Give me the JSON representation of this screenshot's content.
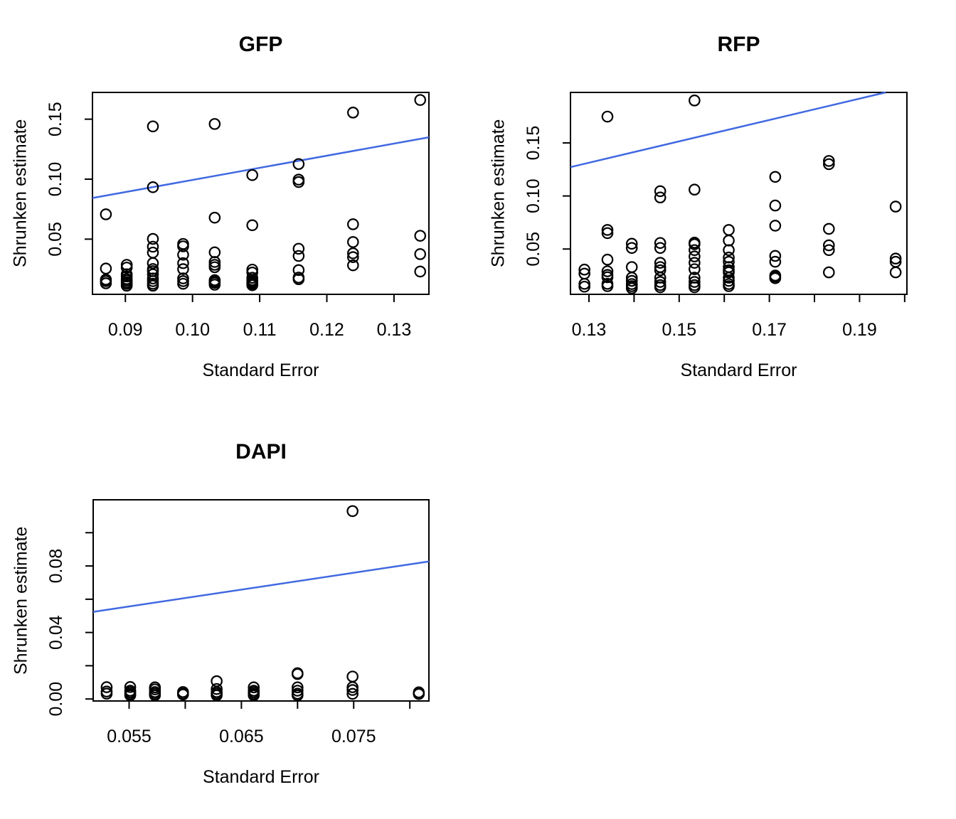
{
  "figure": {
    "background": "#ffffff",
    "point_color": "#000000",
    "line_color": "#4169e1",
    "axis_color": "#000000"
  },
  "chart_data": [
    {
      "id": "gfp",
      "type": "scatter",
      "title": "GFP",
      "xlabel": "Standard Error",
      "ylabel": "Shrunken estimate",
      "xlim": [
        0.0851,
        0.1352
      ],
      "ylim": [
        0.004,
        0.1723
      ],
      "grid": false,
      "legend": "none",
      "x_ticks": [
        0.09,
        0.1,
        0.11,
        0.12,
        0.13
      ],
      "x_tick_labels": [
        "0.09",
        "0.10",
        "0.11",
        "0.12",
        "0.13"
      ],
      "y_ticks": [
        0.05,
        0.1,
        0.15
      ],
      "y_tick_labels": [
        "0.05",
        "0.10",
        "0.15"
      ],
      "line": {
        "x1": 0.0851,
        "y1": 0.0843,
        "x2": 0.1352,
        "y2": 0.1349
      },
      "points": [
        [
          0.0871,
          0.0707
        ],
        [
          0.0871,
          0.0255
        ],
        [
          0.0871,
          0.0163
        ],
        [
          0.0871,
          0.015
        ],
        [
          0.0871,
          0.0132
        ],
        [
          0.0902,
          0.0286
        ],
        [
          0.0902,
          0.0263
        ],
        [
          0.0902,
          0.0207
        ],
        [
          0.0902,
          0.0189
        ],
        [
          0.0902,
          0.0168
        ],
        [
          0.0902,
          0.0155
        ],
        [
          0.0902,
          0.014
        ],
        [
          0.0902,
          0.0128
        ],
        [
          0.0902,
          0.0112
        ],
        [
          0.0941,
          0.144
        ],
        [
          0.0941,
          0.0933
        ],
        [
          0.0941,
          0.0502
        ],
        [
          0.0941,
          0.0437
        ],
        [
          0.0941,
          0.0388
        ],
        [
          0.0941,
          0.03
        ],
        [
          0.0941,
          0.0251
        ],
        [
          0.0941,
          0.0233
        ],
        [
          0.0941,
          0.0207
        ],
        [
          0.0941,
          0.0172
        ],
        [
          0.0941,
          0.015
        ],
        [
          0.0941,
          0.0128
        ],
        [
          0.0941,
          0.0112
        ],
        [
          0.0986,
          0.046
        ],
        [
          0.0986,
          0.044
        ],
        [
          0.0986,
          0.037
        ],
        [
          0.0986,
          0.03
        ],
        [
          0.0986,
          0.025
        ],
        [
          0.0986,
          0.0173
        ],
        [
          0.0986,
          0.015
        ],
        [
          0.0986,
          0.0128
        ],
        [
          0.1033,
          0.146
        ],
        [
          0.1033,
          0.0679
        ],
        [
          0.1033,
          0.039
        ],
        [
          0.1033,
          0.031
        ],
        [
          0.1033,
          0.0286
        ],
        [
          0.1033,
          0.0266
        ],
        [
          0.1033,
          0.0158
        ],
        [
          0.1033,
          0.0146
        ],
        [
          0.1033,
          0.0136
        ],
        [
          0.1033,
          0.012
        ],
        [
          0.1089,
          0.1034
        ],
        [
          0.1089,
          0.0616
        ],
        [
          0.1089,
          0.0246
        ],
        [
          0.1089,
          0.0222
        ],
        [
          0.1089,
          0.0178
        ],
        [
          0.1089,
          0.016
        ],
        [
          0.1089,
          0.0148
        ],
        [
          0.1089,
          0.0138
        ],
        [
          0.1089,
          0.0128
        ],
        [
          0.1089,
          0.0116
        ],
        [
          0.1158,
          0.1126
        ],
        [
          0.1158,
          0.0996
        ],
        [
          0.1158,
          0.0976
        ],
        [
          0.1158,
          0.042
        ],
        [
          0.1158,
          0.036
        ],
        [
          0.1158,
          0.0242
        ],
        [
          0.1158,
          0.018
        ],
        [
          0.1158,
          0.0166
        ],
        [
          0.1239,
          0.1555
        ],
        [
          0.1239,
          0.0624
        ],
        [
          0.1239,
          0.0476
        ],
        [
          0.1239,
          0.0382
        ],
        [
          0.1239,
          0.035
        ],
        [
          0.1239,
          0.0282
        ],
        [
          0.1339,
          0.166
        ],
        [
          0.1339,
          0.0528
        ],
        [
          0.1339,
          0.0375
        ],
        [
          0.1339,
          0.023
        ]
      ]
    },
    {
      "id": "rfp",
      "type": "scatter",
      "title": "RFP",
      "xlabel": "Standard Error",
      "ylabel": "Shrunken estimate",
      "xlim": [
        0.1259,
        0.2005
      ],
      "ylim": [
        0.0073,
        0.1976
      ],
      "grid": false,
      "legend": "none",
      "x_ticks": [
        0.13,
        0.14,
        0.15,
        0.16,
        0.17,
        0.18,
        0.19,
        0.2
      ],
      "x_tick_labels": [
        "0.13",
        "",
        "0.15",
        "",
        "0.17",
        "",
        "0.19",
        ""
      ],
      "y_ticks": [
        0.05,
        0.1,
        0.15
      ],
      "y_tick_labels": [
        "0.05",
        "0.10",
        "0.15"
      ],
      "line": {
        "x1": 0.1259,
        "y1": 0.1272,
        "x2": 0.1958,
        "y2": 0.1976
      },
      "points": [
        [
          0.129,
          0.0306
        ],
        [
          0.129,
          0.0268
        ],
        [
          0.129,
          0.0172
        ],
        [
          0.129,
          0.0145
        ],
        [
          0.1341,
          0.1748
        ],
        [
          0.1341,
          0.068
        ],
        [
          0.1341,
          0.065
        ],
        [
          0.1341,
          0.04
        ],
        [
          0.1341,
          0.029
        ],
        [
          0.1341,
          0.0256
        ],
        [
          0.1341,
          0.0234
        ],
        [
          0.1341,
          0.0172
        ],
        [
          0.1341,
          0.015
        ],
        [
          0.1395,
          0.055
        ],
        [
          0.1395,
          0.051
        ],
        [
          0.1395,
          0.033
        ],
        [
          0.1395,
          0.023
        ],
        [
          0.1395,
          0.02
        ],
        [
          0.1395,
          0.017
        ],
        [
          0.1395,
          0.015
        ],
        [
          0.1395,
          0.013
        ],
        [
          0.1458,
          0.1045
        ],
        [
          0.1458,
          0.0986
        ],
        [
          0.1458,
          0.0557
        ],
        [
          0.1458,
          0.051
        ],
        [
          0.1458,
          0.037
        ],
        [
          0.1458,
          0.033
        ],
        [
          0.1458,
          0.03
        ],
        [
          0.1458,
          0.023
        ],
        [
          0.1458,
          0.019
        ],
        [
          0.1458,
          0.016
        ],
        [
          0.1458,
          0.014
        ],
        [
          0.1534,
          0.19
        ],
        [
          0.1534,
          0.106
        ],
        [
          0.1534,
          0.056
        ],
        [
          0.1534,
          0.0545
        ],
        [
          0.1534,
          0.049
        ],
        [
          0.1534,
          0.043
        ],
        [
          0.1534,
          0.037
        ],
        [
          0.1534,
          0.031
        ],
        [
          0.1534,
          0.023
        ],
        [
          0.1534,
          0.019
        ],
        [
          0.1534,
          0.016
        ],
        [
          0.1534,
          0.014
        ],
        [
          0.161,
          0.068
        ],
        [
          0.161,
          0.058
        ],
        [
          0.161,
          0.049
        ],
        [
          0.161,
          0.042
        ],
        [
          0.161,
          0.038
        ],
        [
          0.161,
          0.033
        ],
        [
          0.161,
          0.03
        ],
        [
          0.161,
          0.028
        ],
        [
          0.161,
          0.023
        ],
        [
          0.161,
          0.02
        ],
        [
          0.161,
          0.017
        ],
        [
          0.161,
          0.015
        ],
        [
          0.1713,
          0.118
        ],
        [
          0.1713,
          0.091
        ],
        [
          0.1713,
          0.072
        ],
        [
          0.1713,
          0.0435
        ],
        [
          0.1713,
          0.038
        ],
        [
          0.1713,
          0.025
        ],
        [
          0.1713,
          0.024
        ],
        [
          0.1713,
          0.0225
        ],
        [
          0.1832,
          0.133
        ],
        [
          0.1832,
          0.13
        ],
        [
          0.1832,
          0.069
        ],
        [
          0.1832,
          0.0535
        ],
        [
          0.1832,
          0.049
        ],
        [
          0.1832,
          0.028
        ],
        [
          0.198,
          0.09
        ],
        [
          0.198,
          0.041
        ],
        [
          0.198,
          0.038
        ],
        [
          0.198,
          0.028
        ]
      ]
    },
    {
      "id": "dapi",
      "type": "scatter",
      "title": "DAPI",
      "xlabel": "Standard Error",
      "ylabel": "Shrunken estimate",
      "xlim": [
        0.0518,
        0.0817
      ],
      "ylim": [
        -0.0012,
        0.1198
      ],
      "grid": false,
      "legend": "none",
      "x_ticks": [
        0.055,
        0.06,
        0.065,
        0.07,
        0.075,
        0.08
      ],
      "x_tick_labels": [
        "0.055",
        "",
        "0.065",
        "",
        "0.075",
        ""
      ],
      "y_ticks": [
        0.0,
        0.02,
        0.04,
        0.06,
        0.08,
        0.1
      ],
      "y_tick_labels": [
        "0.00",
        "",
        "0.04",
        "",
        "0.08",
        ""
      ],
      "line": {
        "x1": 0.0518,
        "y1": 0.0524,
        "x2": 0.0817,
        "y2": 0.0827
      },
      "points": [
        [
          0.053,
          0.0071
        ],
        [
          0.053,
          0.0045
        ],
        [
          0.053,
          0.0032
        ],
        [
          0.0551,
          0.0072
        ],
        [
          0.0551,
          0.005
        ],
        [
          0.0551,
          0.004
        ],
        [
          0.0551,
          0.003
        ],
        [
          0.0551,
          0.0022
        ],
        [
          0.0573,
          0.007
        ],
        [
          0.0573,
          0.0058
        ],
        [
          0.0573,
          0.0042
        ],
        [
          0.0573,
          0.0032
        ],
        [
          0.0573,
          0.0022
        ],
        [
          0.0598,
          0.0042
        ],
        [
          0.0598,
          0.0032
        ],
        [
          0.0598,
          0.0027
        ],
        [
          0.0628,
          0.0107
        ],
        [
          0.0628,
          0.006
        ],
        [
          0.0628,
          0.0042
        ],
        [
          0.0628,
          0.0032
        ],
        [
          0.0628,
          0.0022
        ],
        [
          0.0661,
          0.007
        ],
        [
          0.0661,
          0.005
        ],
        [
          0.0661,
          0.004
        ],
        [
          0.0661,
          0.003
        ],
        [
          0.0661,
          0.0022
        ],
        [
          0.07,
          0.0155
        ],
        [
          0.07,
          0.015
        ],
        [
          0.07,
          0.007
        ],
        [
          0.07,
          0.005
        ],
        [
          0.07,
          0.0032
        ],
        [
          0.07,
          0.0022
        ],
        [
          0.0749,
          0.113
        ],
        [
          0.0749,
          0.0135
        ],
        [
          0.0749,
          0.0071
        ],
        [
          0.0749,
          0.0054
        ],
        [
          0.0749,
          0.0031
        ],
        [
          0.0808,
          0.004
        ],
        [
          0.0808,
          0.003
        ]
      ]
    }
  ]
}
